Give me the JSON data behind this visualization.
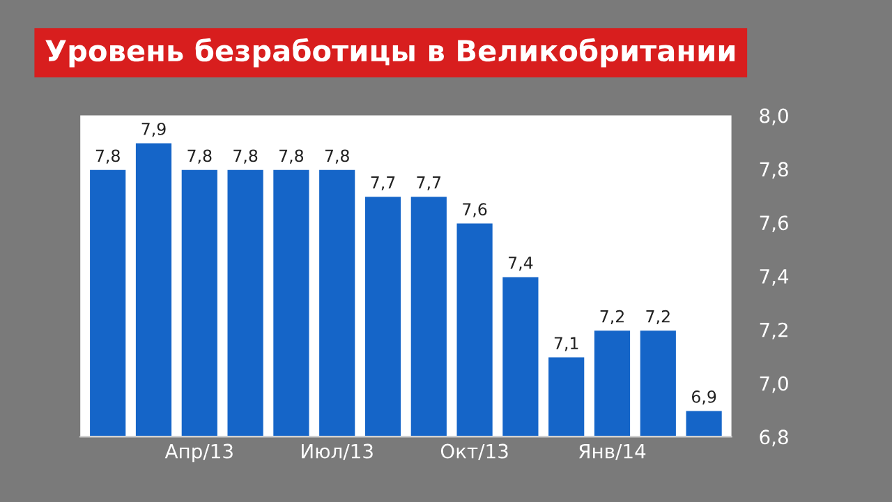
{
  "chart_data": {
    "type": "bar",
    "title": "Уровень безработицы в Великобритании",
    "categories": [
      null,
      null,
      "Апр/13",
      null,
      null,
      "Июл/13",
      null,
      null,
      "Окт/13",
      null,
      null,
      "Янв/14",
      null,
      null
    ],
    "values": [
      7.8,
      7.9,
      7.8,
      7.8,
      7.8,
      7.8,
      7.7,
      7.7,
      7.6,
      7.4,
      7.1,
      7.2,
      7.2,
      6.9
    ],
    "value_labels": [
      "7,8",
      "7,9",
      "7,8",
      "7,8",
      "7,8",
      "7,8",
      "7,7",
      "7,7",
      "7,6",
      "7,4",
      "7,1",
      "7,2",
      "7,2",
      "6,9"
    ],
    "color": "#1565c8",
    "ylim": [
      6.8,
      8.0
    ],
    "yticks": [
      {
        "value": 6.8,
        "label": "6,8"
      },
      {
        "value": 7.0,
        "label": "7,0"
      },
      {
        "value": 7.2,
        "label": "7,2"
      },
      {
        "value": 7.4,
        "label": "7,4"
      },
      {
        "value": 7.6,
        "label": "7,6"
      },
      {
        "value": 7.8,
        "label": "7,8"
      },
      {
        "value": 8.0,
        "label": "8,0"
      }
    ],
    "grid": false
  }
}
